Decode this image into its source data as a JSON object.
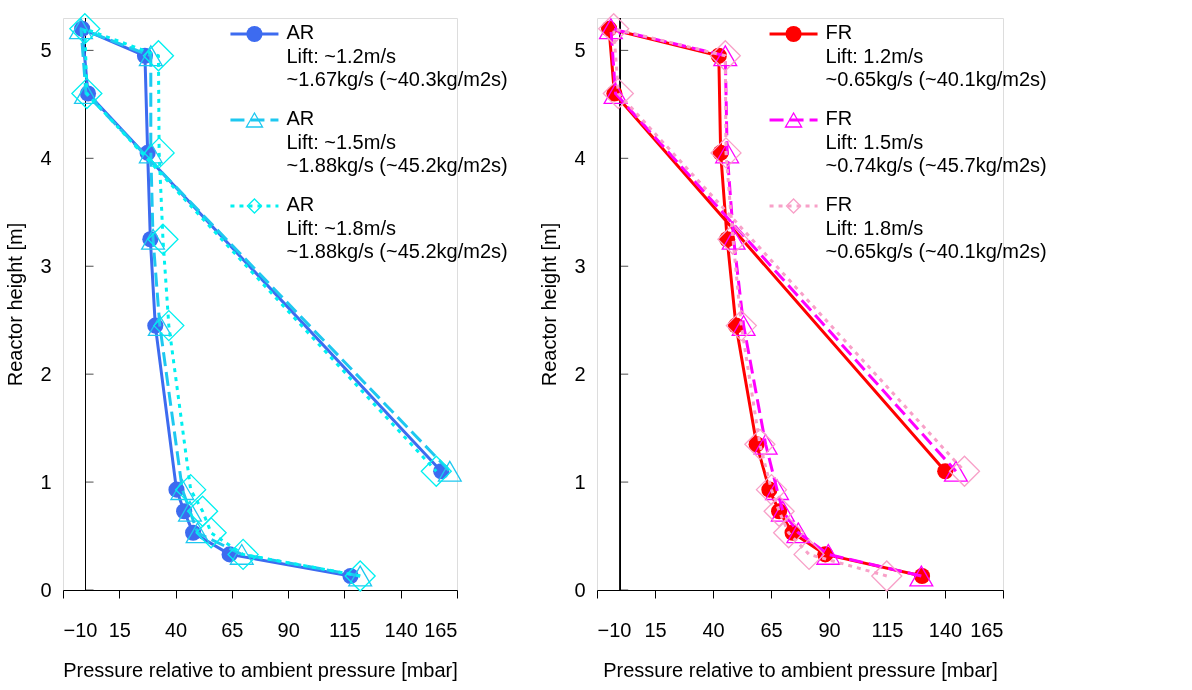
{
  "chart_data": [
    {
      "type": "line",
      "xlabel": "Pressure relative to ambient pressure [mbar]",
      "ylabel": "Reactor height [m]",
      "xlim": [
        -10,
        165
      ],
      "xticks": [
        -10,
        15,
        40,
        65,
        90,
        115,
        140,
        165
      ],
      "ylim": [
        0,
        5.3
      ],
      "yticks": [
        0,
        1,
        2,
        3,
        4,
        5
      ],
      "grid": false,
      "legend": "top right",
      "series": [
        {
          "name": "AR\nLift: ~1.2m/s\n~1.67kg/s (~40.3kg/m2s)",
          "color": "#3d6bf0",
          "marker": "circle",
          "line_style": "solid",
          "x": [
            117.7,
            64.0,
            47.8,
            43.8,
            40.4,
            31.0,
            28.8,
            27.6,
            26.4,
            -1.5,
            1.1,
            158
          ],
          "values": [
            0.13,
            0.33,
            0.53,
            0.73,
            0.93,
            2.45,
            3.25,
            4.05,
            4.95,
            5.2,
            4.6,
            1.1
          ]
        },
        {
          "name": "AR\nLift: ~1.5m/s\n~1.88kg/s (~45.2kg/m2s)",
          "color": "#1ec8f0",
          "marker": "triangle",
          "line_style": "dashed",
          "x": [
            122,
            69.4,
            49.8,
            46.4,
            43,
            33,
            30,
            29,
            29,
            -2,
            0.2,
            161.8
          ],
          "values": [
            0.13,
            0.33,
            0.53,
            0.73,
            0.93,
            2.45,
            3.25,
            4.05,
            4.95,
            5.2,
            4.6,
            1.1
          ]
        },
        {
          "name": "AR\nLift: ~1.8m/s\n~1.88kg/s (~45.2kg/m2s)",
          "color": "#00f0f0",
          "marker": "diamond",
          "line_style": "dotted",
          "x": [
            122,
            70,
            55.8,
            52,
            46.7,
            37,
            34.4,
            32.7,
            32.4,
            -0.3,
            0.6,
            155.8
          ],
          "values": [
            0.13,
            0.33,
            0.53,
            0.73,
            0.93,
            2.45,
            3.25,
            4.05,
            4.95,
            5.2,
            4.6,
            1.1
          ]
        }
      ]
    },
    {
      "type": "line",
      "xlabel": "Pressure relative to ambient pressure [mbar]",
      "ylabel": "Reactor height [m]",
      "xlim": [
        -10,
        165
      ],
      "xticks": [
        -10,
        15,
        40,
        65,
        90,
        115,
        140,
        165
      ],
      "ylim": [
        0,
        5.3
      ],
      "yticks": [
        0,
        1,
        2,
        3,
        4,
        5
      ],
      "grid": false,
      "legend": "top right",
      "series": [
        {
          "name": "FR\nLift: 1.2m/s\n~0.65kg/s (~40.1kg/m2s)",
          "color": "#ff0000",
          "marker": "circle",
          "line_style": "solid",
          "x": [
            130.1,
            88.4,
            74.3,
            68.5,
            64.3,
            58.8,
            49.9,
            46.1,
            43.3,
            42.5,
            -4.8,
            -2.5,
            140.1
          ],
          "values": [
            0.13,
            0.33,
            0.53,
            0.73,
            0.93,
            1.35,
            2.45,
            3.25,
            4.05,
            4.95,
            5.2,
            4.6,
            1.1
          ]
        },
        {
          "name": "FR\nLift: 1.5m/s\n~0.74kg/s (~45.7kg/m2s)",
          "color": "#ff00ff",
          "marker": "triangle",
          "line_style": "dashed",
          "x": [
            129.8,
            89.7,
            76.8,
            70.1,
            67.6,
            62.7,
            53.2,
            48.9,
            46.1,
            45.3,
            -4,
            -2,
            144.7
          ],
          "values": [
            0.13,
            0.33,
            0.53,
            0.73,
            0.93,
            1.35,
            2.45,
            3.25,
            4.05,
            4.95,
            5.2,
            4.6,
            1.1
          ]
        },
        {
          "name": "FR\nLift: 1.8m/s\n~0.65kg/s (~40.1kg/m2s)",
          "color": "#f8a0c8",
          "marker": "diamond",
          "line_style": "dotted",
          "x": [
            114.9,
            81.4,
            72.6,
            68.5,
            65.2,
            60.2,
            52.2,
            48.6,
            45.6,
            45.3,
            -2.8,
            -0.8,
            148.4
          ],
          "values": [
            0.13,
            0.33,
            0.53,
            0.73,
            0.93,
            1.35,
            2.45,
            3.25,
            4.05,
            4.95,
            5.2,
            4.6,
            1.1
          ]
        }
      ]
    }
  ]
}
